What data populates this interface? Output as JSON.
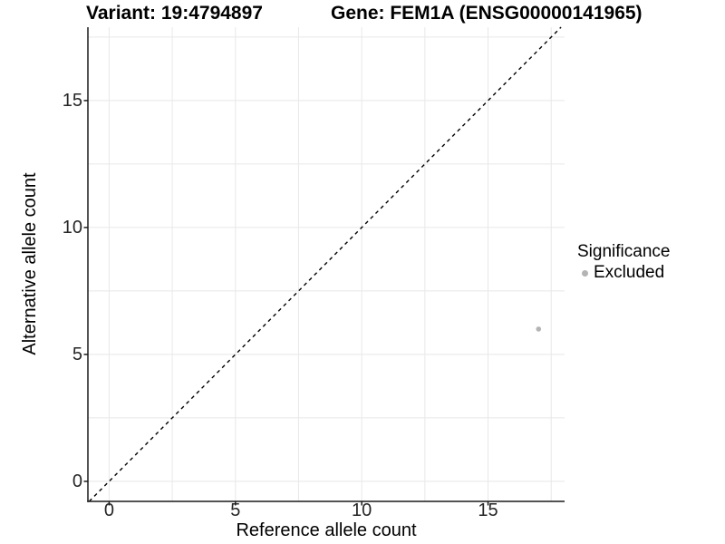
{
  "titles": {
    "variant": "Variant: 19:4794897",
    "gene": "Gene: FEM1A (ENSG00000141965)"
  },
  "chart_data": {
    "type": "scatter",
    "title": "Variant: 19:4794897  Gene: FEM1A (ENSG00000141965)",
    "xlabel": "Reference allele count",
    "ylabel": "Alternative allele count",
    "xlim": [
      -0.84,
      18.03
    ],
    "ylim": [
      -0.79,
      17.89
    ],
    "x_ticks": [
      0,
      5,
      10,
      15
    ],
    "y_ticks": [
      0,
      5,
      10,
      15
    ],
    "grid_step": 2.5,
    "grid": true,
    "legend_position": "right",
    "identity_line": {
      "style": "dashed",
      "slope": 1,
      "intercept": 0,
      "color": "#000000"
    },
    "series": [
      {
        "name": "Excluded",
        "color": "#b4b4b4",
        "points": [
          {
            "x": 17,
            "y": 6
          }
        ]
      }
    ],
    "legend": {
      "title": "Significance",
      "items": [
        {
          "label": "Excluded",
          "color": "#b4b4b4"
        }
      ]
    }
  },
  "colors": {
    "background": "#ffffff",
    "grid": "#e8e8e8",
    "axis": "#1a1a1a",
    "tick_text": "#262626",
    "text": "#000000",
    "point": "#b4b4b4"
  }
}
